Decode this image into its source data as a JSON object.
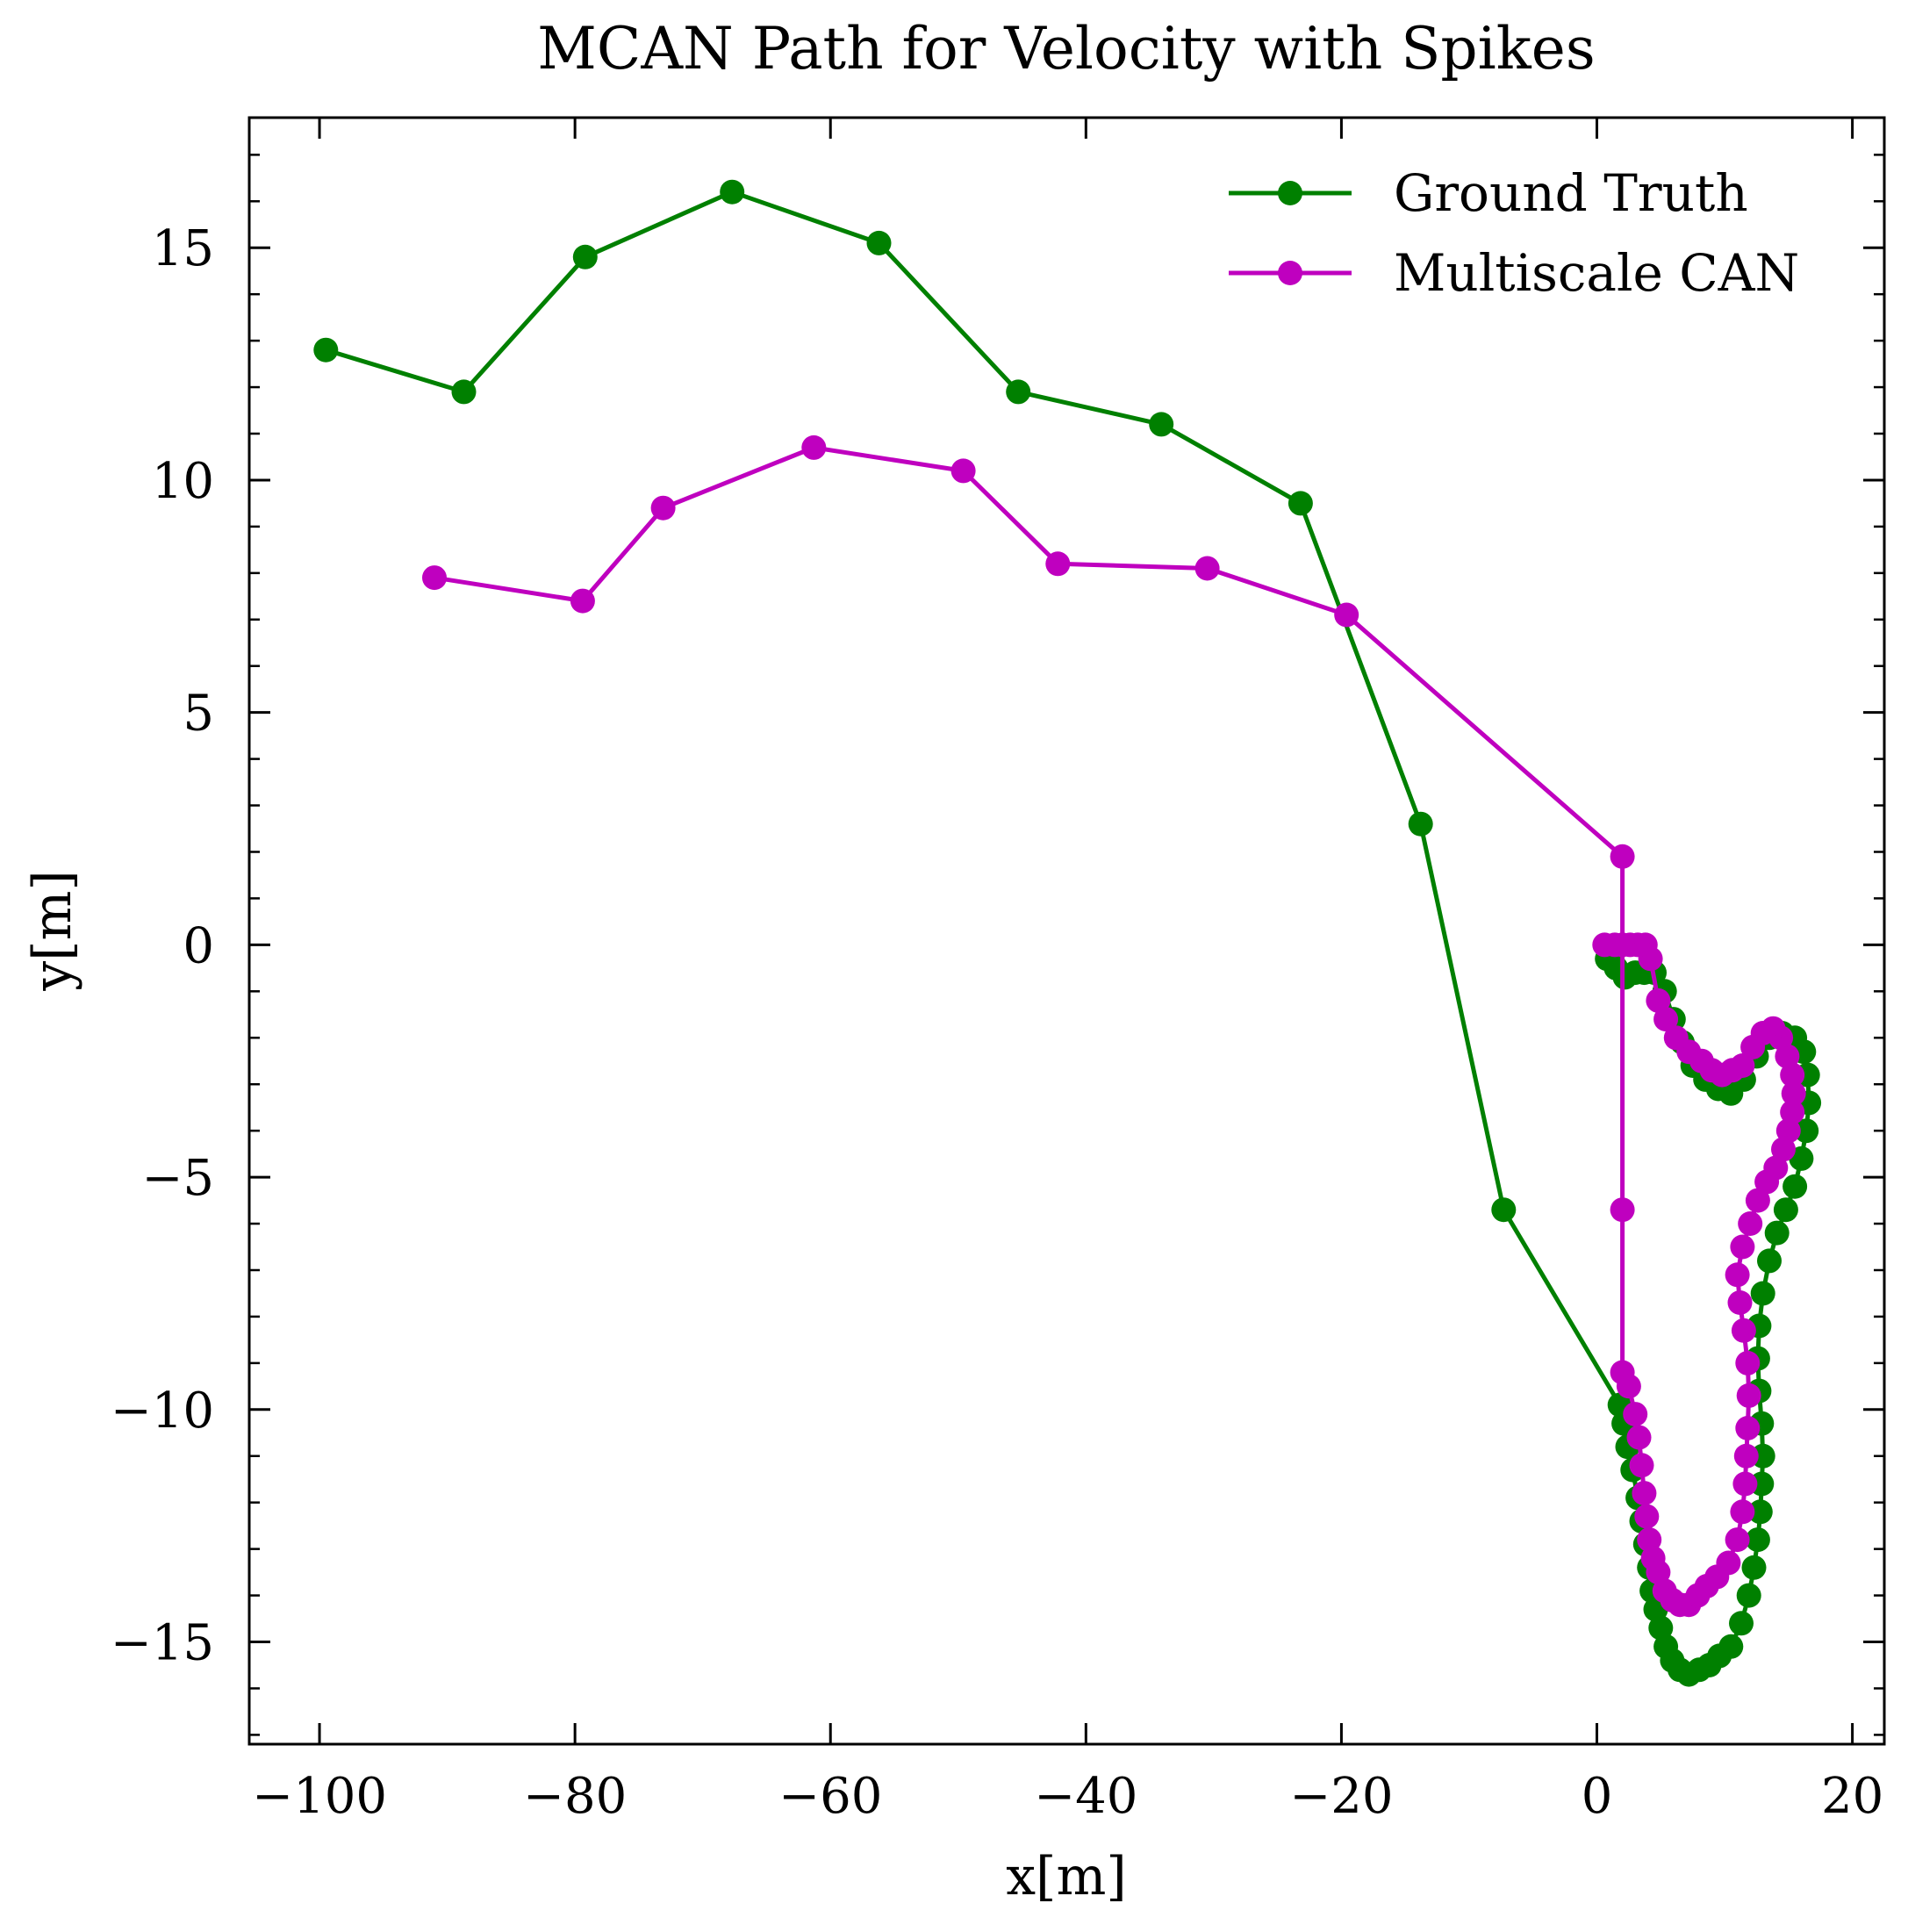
{
  "chart_data": {
    "type": "line",
    "title": "MCAN Path for Velocity with Spikes",
    "xlabel": "x[m]",
    "ylabel": "y[m]",
    "xlim": [
      -105.5,
      22.5
    ],
    "ylim": [
      -17.2,
      17.8
    ],
    "x_ticks": [
      -100,
      -80,
      -60,
      -40,
      -20,
      0,
      20
    ],
    "y_ticks": [
      -15,
      -10,
      -5,
      0,
      5,
      10,
      15
    ],
    "x_tick_labels": [
      "−100",
      "−80",
      "−60",
      "−40",
      "−20",
      "0",
      "20"
    ],
    "y_tick_labels": [
      "−15",
      "−10",
      "−5",
      "0",
      "5",
      "10",
      "15"
    ],
    "grid": false,
    "legend_position": "top-right",
    "series": [
      {
        "name": "Ground Truth",
        "color": "#008000",
        "points": [
          [
            -99.5,
            12.8
          ],
          [
            -88.7,
            11.9
          ],
          [
            -79.2,
            14.8
          ],
          [
            -67.7,
            16.2
          ],
          [
            -56.2,
            15.1
          ],
          [
            -45.3,
            11.9
          ],
          [
            -34.1,
            11.2
          ],
          [
            -23.2,
            9.5
          ],
          [
            -13.8,
            2.6
          ],
          [
            -7.3,
            -5.7
          ],
          [
            1.8,
            -9.9
          ],
          [
            2.1,
            -10.3
          ],
          [
            2.4,
            -10.8
          ],
          [
            2.8,
            -11.3
          ],
          [
            3.2,
            -11.9
          ],
          [
            3.5,
            -12.4
          ],
          [
            3.8,
            -12.9
          ],
          [
            4.1,
            -13.4
          ],
          [
            4.3,
            -13.9
          ],
          [
            4.6,
            -14.3
          ],
          [
            5.0,
            -14.7
          ],
          [
            5.4,
            -15.1
          ],
          [
            5.9,
            -15.4
          ],
          [
            6.5,
            -15.6
          ],
          [
            7.2,
            -15.7
          ],
          [
            8.0,
            -15.6
          ],
          [
            8.8,
            -15.5
          ],
          [
            9.6,
            -15.3
          ],
          [
            10.5,
            -15.1
          ],
          [
            11.3,
            -14.6
          ],
          [
            11.9,
            -14.0
          ],
          [
            12.3,
            -13.4
          ],
          [
            12.6,
            -12.8
          ],
          [
            12.8,
            -12.2
          ],
          [
            12.9,
            -11.6
          ],
          [
            13.0,
            -11.0
          ],
          [
            12.9,
            -10.3
          ],
          [
            12.7,
            -9.6
          ],
          [
            12.6,
            -8.9
          ],
          [
            12.7,
            -8.2
          ],
          [
            13.0,
            -7.5
          ],
          [
            13.5,
            -6.8
          ],
          [
            14.1,
            -6.2
          ],
          [
            14.8,
            -5.7
          ],
          [
            15.5,
            -5.2
          ],
          [
            16.0,
            -4.6
          ],
          [
            16.4,
            -4.0
          ],
          [
            16.6,
            -3.4
          ],
          [
            16.5,
            -2.8
          ],
          [
            16.2,
            -2.3
          ],
          [
            15.5,
            -2.0
          ],
          [
            14.5,
            -1.9
          ],
          [
            13.5,
            -2.0
          ],
          [
            12.5,
            -2.4
          ],
          [
            11.5,
            -2.9
          ],
          [
            10.5,
            -3.2
          ],
          [
            9.5,
            -3.1
          ],
          [
            8.5,
            -2.9
          ],
          [
            7.5,
            -2.6
          ],
          [
            6.7,
            -2.1
          ],
          [
            6.0,
            -1.6
          ],
          [
            5.3,
            -1.0
          ],
          [
            4.5,
            -0.6
          ],
          [
            3.7,
            -0.6
          ],
          [
            3.0,
            -0.6
          ],
          [
            2.2,
            -0.7
          ],
          [
            1.5,
            -0.5
          ],
          [
            0.8,
            -0.3
          ]
        ]
      },
      {
        "name": "Multiscale CAN",
        "color": "#bf00bf",
        "points": [
          [
            -91.0,
            7.9
          ],
          [
            -79.4,
            7.4
          ],
          [
            -73.1,
            9.4
          ],
          [
            -61.3,
            10.7
          ],
          [
            -49.6,
            10.2
          ],
          [
            -42.2,
            8.2
          ],
          [
            -30.5,
            8.1
          ],
          [
            -19.6,
            7.1
          ],
          [
            2.0,
            1.9
          ],
          [
            2.0,
            -5.7
          ],
          [
            2.0,
            -9.2
          ],
          [
            2.5,
            -9.5
          ],
          [
            3.0,
            -10.1
          ],
          [
            3.3,
            -10.6
          ],
          [
            3.5,
            -11.2
          ],
          [
            3.7,
            -11.8
          ],
          [
            3.9,
            -12.3
          ],
          [
            4.1,
            -12.8
          ],
          [
            4.4,
            -13.2
          ],
          [
            4.8,
            -13.5
          ],
          [
            5.3,
            -13.9
          ],
          [
            5.9,
            -14.1
          ],
          [
            6.5,
            -14.2
          ],
          [
            7.2,
            -14.2
          ],
          [
            7.9,
            -14.0
          ],
          [
            8.6,
            -13.8
          ],
          [
            9.4,
            -13.6
          ],
          [
            10.3,
            -13.3
          ],
          [
            11.0,
            -12.8
          ],
          [
            11.4,
            -12.2
          ],
          [
            11.6,
            -11.6
          ],
          [
            11.7,
            -11.0
          ],
          [
            11.8,
            -10.4
          ],
          [
            11.9,
            -9.7
          ],
          [
            11.8,
            -9.0
          ],
          [
            11.5,
            -8.3
          ],
          [
            11.2,
            -7.7
          ],
          [
            11.0,
            -7.1
          ],
          [
            11.4,
            -6.5
          ],
          [
            12.0,
            -6.0
          ],
          [
            12.6,
            -5.5
          ],
          [
            13.3,
            -5.1
          ],
          [
            14.0,
            -4.8
          ],
          [
            14.6,
            -4.4
          ],
          [
            15.0,
            -4.0
          ],
          [
            15.3,
            -3.6
          ],
          [
            15.4,
            -3.2
          ],
          [
            15.3,
            -2.8
          ],
          [
            14.9,
            -2.4
          ],
          [
            14.4,
            -2.0
          ],
          [
            13.8,
            -1.8
          ],
          [
            13.0,
            -1.9
          ],
          [
            12.2,
            -2.2
          ],
          [
            11.4,
            -2.6
          ],
          [
            10.6,
            -2.7
          ],
          [
            9.8,
            -2.8
          ],
          [
            9.0,
            -2.7
          ],
          [
            8.2,
            -2.5
          ],
          [
            7.2,
            -2.3
          ],
          [
            6.2,
            -2.0
          ],
          [
            5.4,
            -1.6
          ],
          [
            4.8,
            -1.2
          ],
          [
            4.2,
            -0.3
          ],
          [
            3.8,
            0.0
          ],
          [
            3.2,
            0.0
          ],
          [
            2.6,
            0.0
          ],
          [
            2.0,
            0.0
          ],
          [
            1.4,
            0.0
          ],
          [
            0.6,
            0.0
          ]
        ]
      }
    ]
  }
}
